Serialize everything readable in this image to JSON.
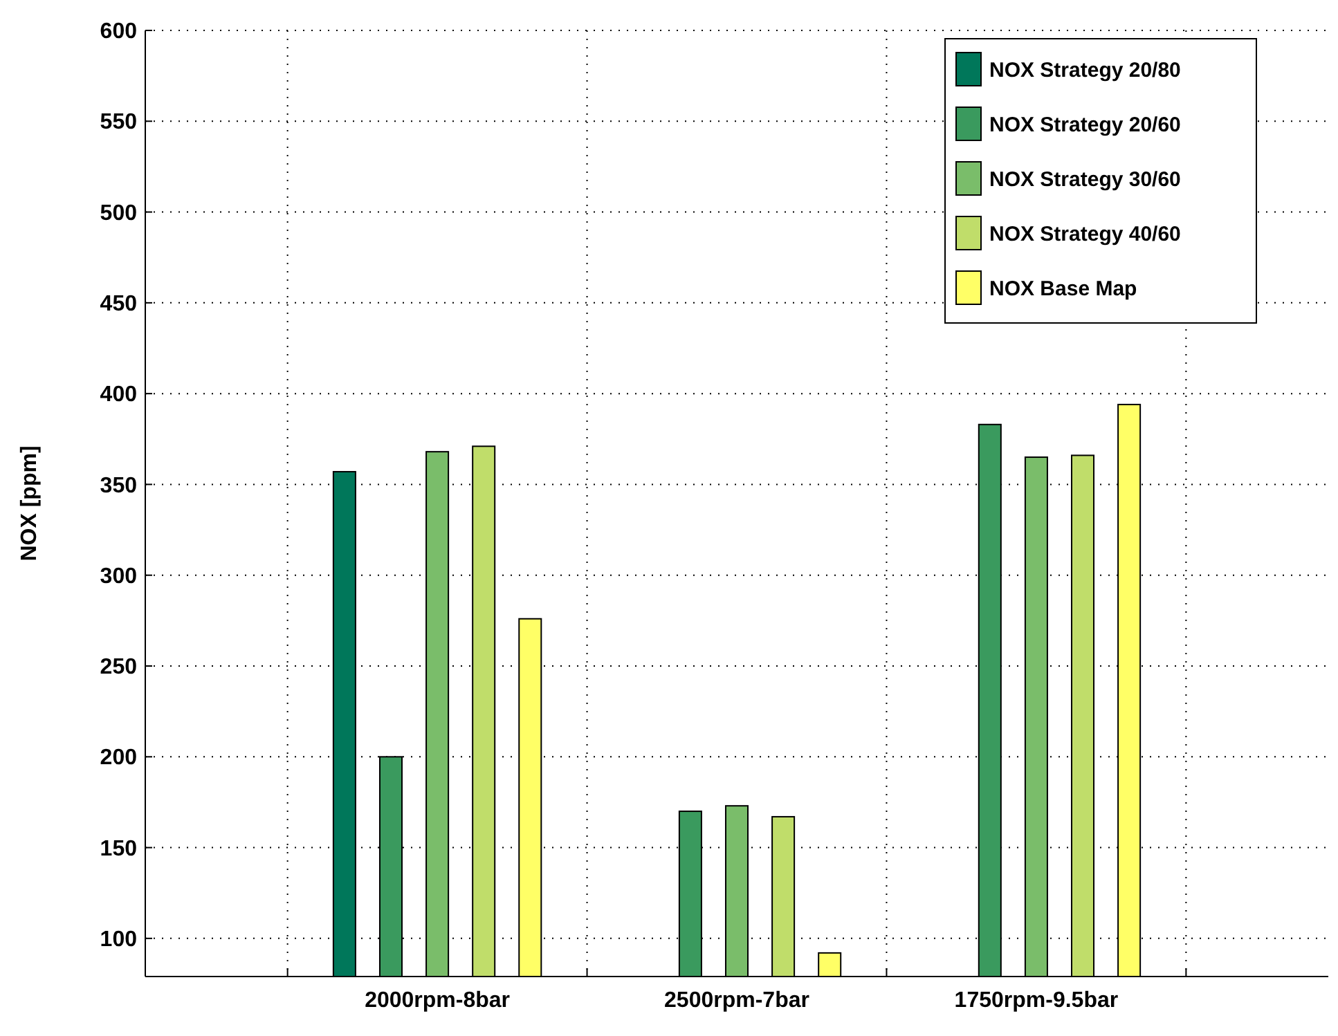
{
  "chart_data": {
    "type": "bar",
    "ylabel": "NOX [ppm]",
    "categories": [
      "2000rpm-8bar",
      "2500rpm-7bar",
      "1750rpm-9.5bar"
    ],
    "series": [
      {
        "name": "NOX Strategy 20/80",
        "color": "#00775a",
        "values": [
          357,
          null,
          null
        ]
      },
      {
        "name": "NOX Strategy 20/60",
        "color": "#3a9a5e",
        "values": [
          200,
          170,
          383
        ]
      },
      {
        "name": "NOX Strategy 30/60",
        "color": "#7abd6a",
        "values": [
          368,
          173,
          365
        ]
      },
      {
        "name": "NOX Strategy 40/60",
        "color": "#c0dd6a",
        "values": [
          371,
          167,
          366
        ]
      },
      {
        "name": "NOX Base Map",
        "color": "#ffff66",
        "values": [
          276,
          92,
          394
        ]
      }
    ],
    "ylim": [
      79,
      600
    ],
    "yticks": [
      100,
      150,
      200,
      250,
      300,
      350,
      400,
      450,
      500,
      550,
      600
    ],
    "grid": true,
    "legend": "top right"
  }
}
